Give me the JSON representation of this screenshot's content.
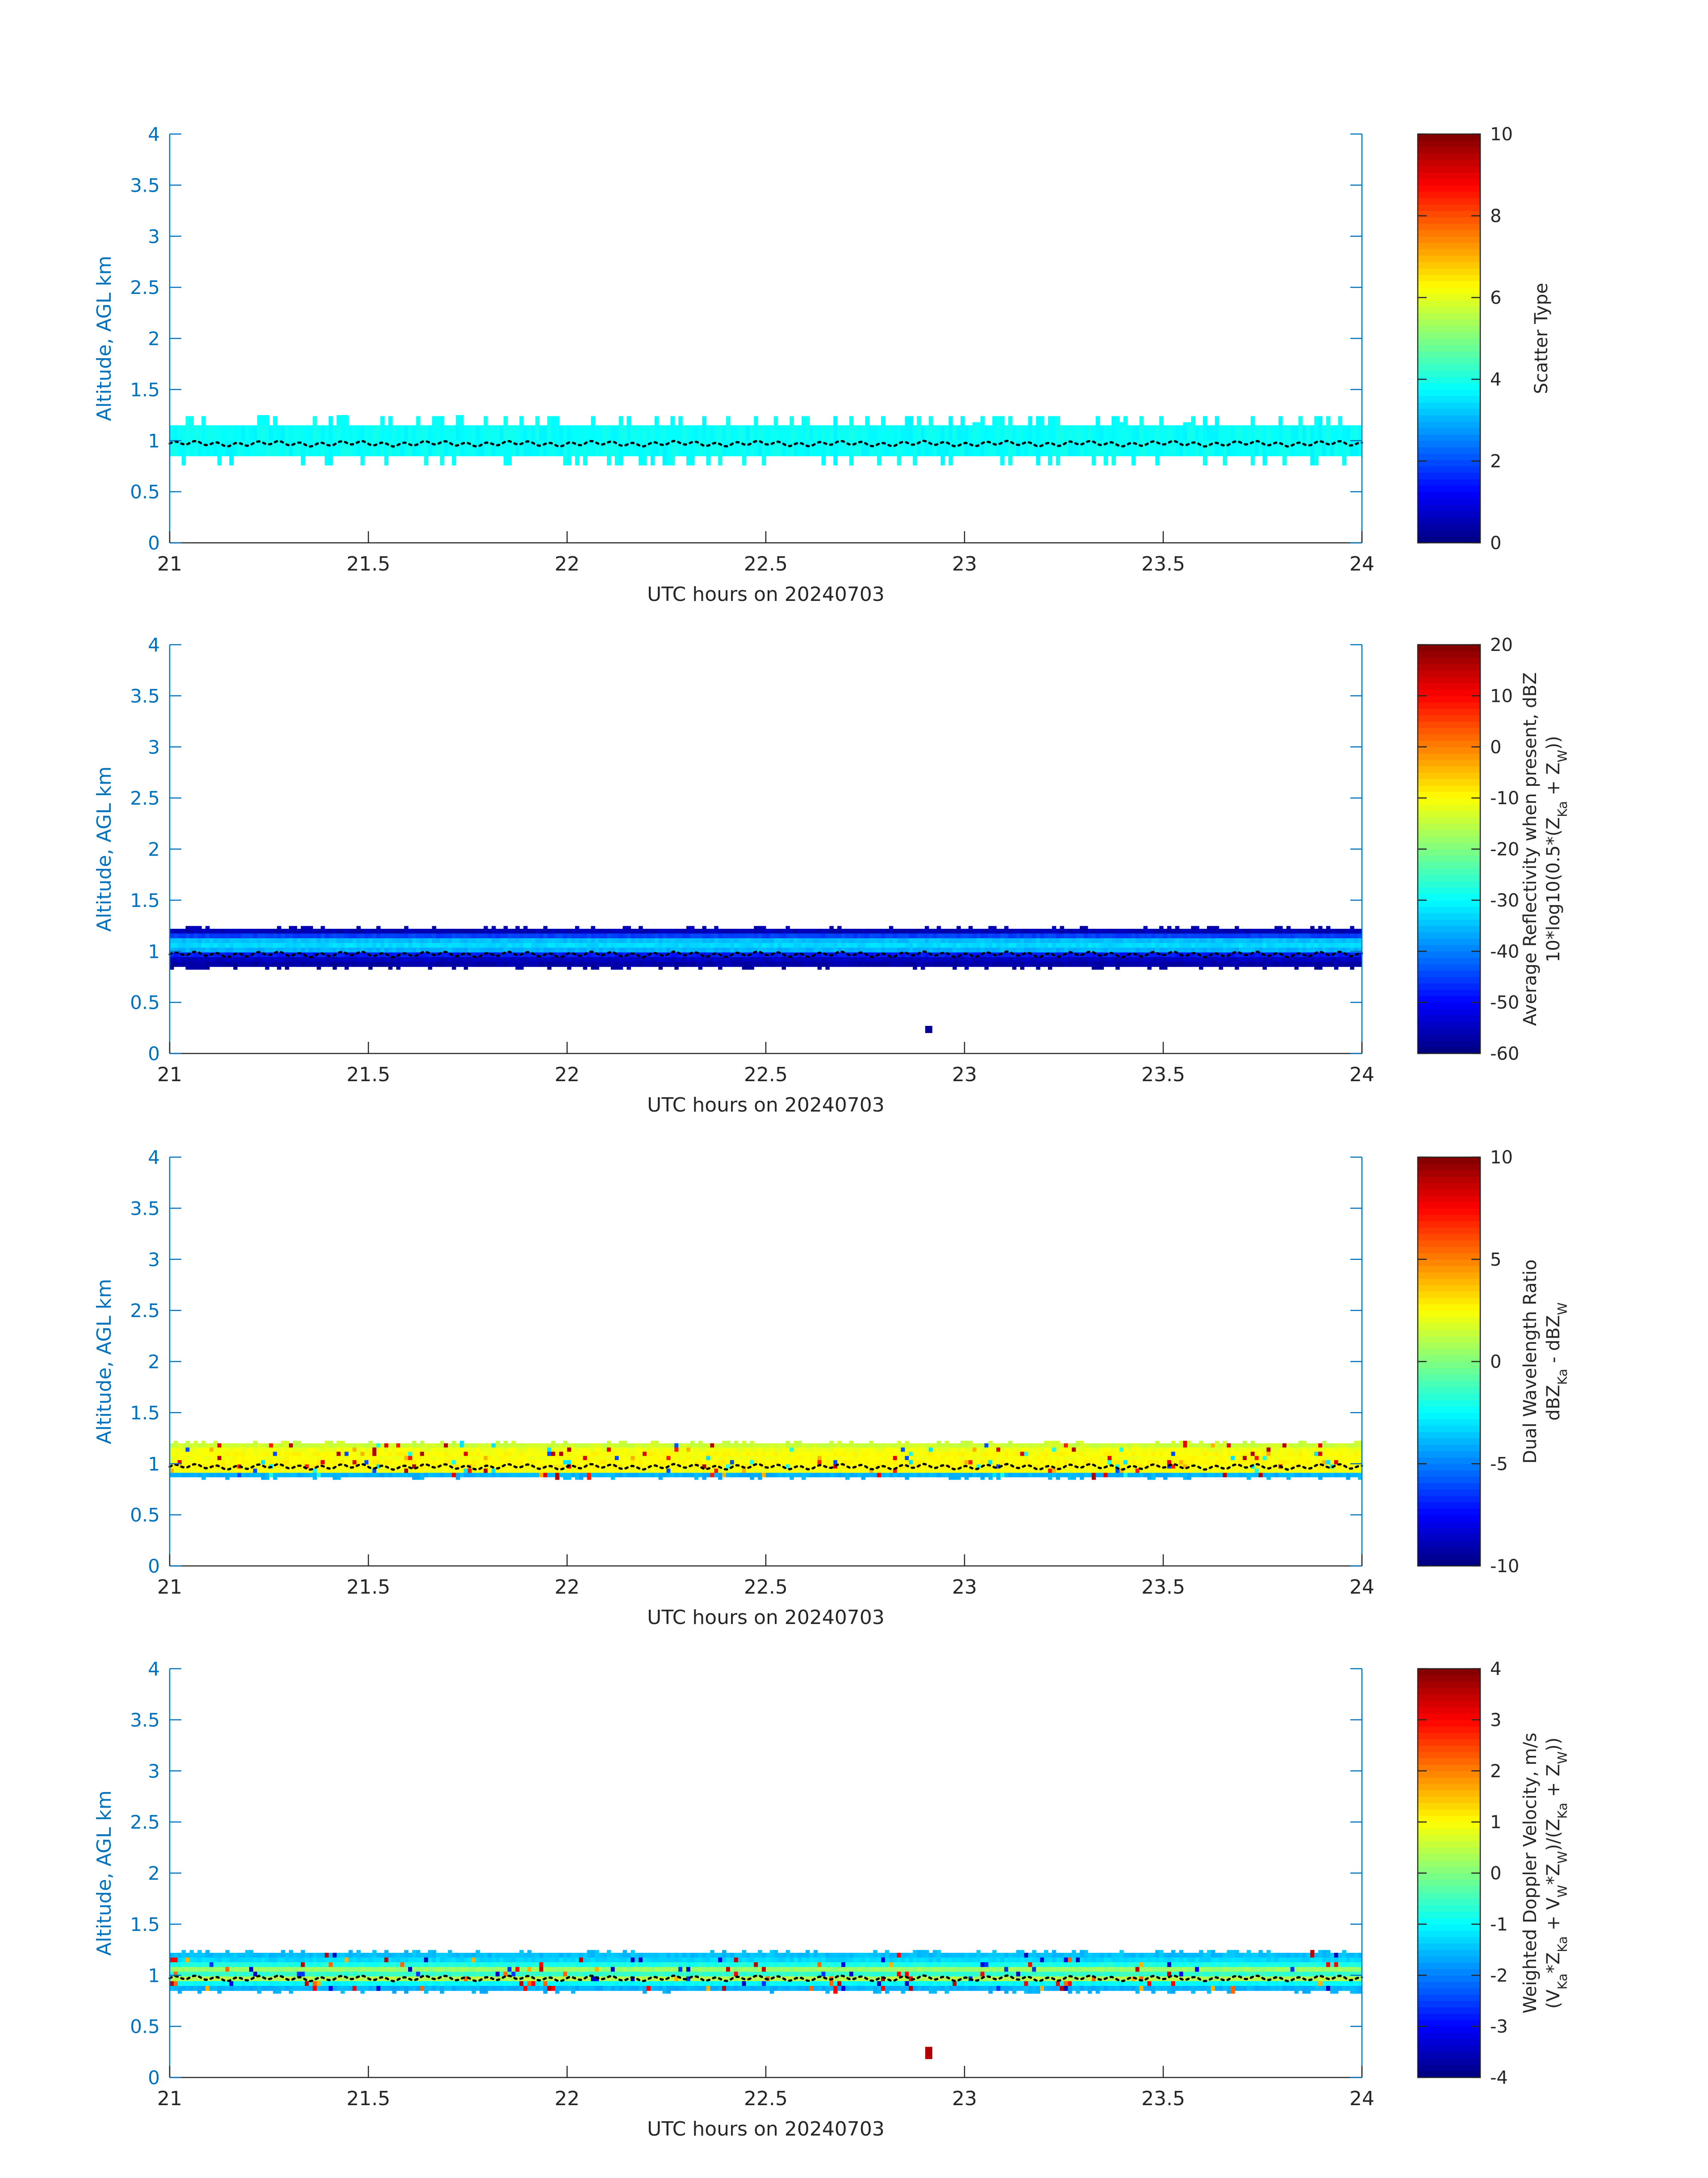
{
  "figure": {
    "background": "#ffffff",
    "axis_color": "#0072bd",
    "text_color": "#262626",
    "colormap": "jet"
  },
  "chart_data": [
    {
      "type": "heatmap",
      "title": "",
      "xlabel": "UTC hours on 20240703",
      "ylabel": "Altitude, AGL km",
      "xlim": [
        21,
        24
      ],
      "ylim": [
        0,
        4
      ],
      "xticks": [
        "21",
        "21.5",
        "22",
        "22.5",
        "23",
        "23.5",
        "24"
      ],
      "yticks": [
        "0",
        "0.5",
        "1",
        "1.5",
        "2",
        "2.5",
        "3",
        "3.5",
        "4"
      ],
      "grid": false,
      "colorbar": {
        "label_lines": [
          "Scatter Type"
        ],
        "range": [
          0,
          10
        ],
        "ticks": [
          "0",
          "2",
          "4",
          "6",
          "8",
          "10"
        ]
      },
      "layer": {
        "bottom_km": 0.85,
        "top_km": 1.15,
        "values": [
          3.8,
          3.8
        ],
        "bumps_top": [
          [
            21.22,
            21.25,
            1.25
          ],
          [
            21.42,
            21.45,
            1.25
          ],
          [
            21.72,
            21.74,
            1.25
          ],
          [
            23.02,
            23.04,
            1.18
          ],
          [
            23.38,
            23.4,
            1.18
          ],
          [
            23.55,
            23.57,
            1.18
          ]
        ]
      },
      "cloud_base_line": {
        "altitude_km": 0.97,
        "color": "#000000"
      }
    },
    {
      "type": "heatmap",
      "title": "",
      "xlabel": "UTC hours on 20240703",
      "ylabel": "Altitude, AGL km",
      "xlim": [
        21,
        24
      ],
      "ylim": [
        0,
        4
      ],
      "xticks": [
        "21",
        "21.5",
        "22",
        "22.5",
        "23",
        "23.5",
        "24"
      ],
      "yticks": [
        "0",
        "0.5",
        "1",
        "1.5",
        "2",
        "2.5",
        "3",
        "3.5",
        "4"
      ],
      "grid": false,
      "colorbar": {
        "label_lines": [
          "Average Reflectivity when present, dBZ",
          "10*log10(0.5*(Z_Ka + Z_W))"
        ],
        "range": [
          -60,
          20
        ],
        "ticks": [
          "-60",
          "-50",
          "-40",
          "-30",
          "-20",
          "-10",
          "0",
          "10",
          "20"
        ]
      },
      "layer": {
        "bottom_km": 0.85,
        "top_km": 1.22,
        "values": [
          -57,
          -55,
          -48,
          -36,
          -33,
          -35,
          -45,
          -56
        ],
        "isolated": [
          {
            "x": 22.91,
            "y_bottom_km": 0.2,
            "y_top_km": 0.27,
            "value": -58
          }
        ]
      },
      "cloud_base_line": {
        "altitude_km": 0.97,
        "color": "#000000"
      }
    },
    {
      "type": "heatmap",
      "title": "",
      "xlabel": "UTC hours on 20240703",
      "ylabel": "Altitude, AGL km",
      "xlim": [
        21,
        24
      ],
      "ylim": [
        0,
        4
      ],
      "xticks": [
        "21",
        "21.5",
        "22",
        "22.5",
        "23",
        "23.5",
        "24"
      ],
      "yticks": [
        "0",
        "0.5",
        "1",
        "1.5",
        "2",
        "2.5",
        "3",
        "3.5",
        "4"
      ],
      "grid": false,
      "colorbar": {
        "label_lines": [
          "Dual Wavelength Ratio",
          "dBZ_Ka - dBZ_W"
        ],
        "range": [
          -10,
          10
        ],
        "ticks": [
          "-10",
          "-5",
          "0",
          "5",
          "10"
        ]
      },
      "layer": {
        "bottom_km": 0.87,
        "top_km": 1.2,
        "values": [
          -4,
          2.3,
          2.6,
          2.6,
          2.4,
          2.5,
          2.2,
          1.5
        ],
        "speckle": [
          7,
          9,
          -3,
          -6,
          4,
          -2,
          8
        ]
      },
      "cloud_base_line": {
        "altitude_km": 0.97,
        "color": "#000000"
      }
    },
    {
      "type": "heatmap",
      "title": "",
      "xlabel": "UTC hours on 20240703",
      "ylabel": "Altitude, AGL km",
      "xlim": [
        21,
        24
      ],
      "ylim": [
        0,
        4
      ],
      "xticks": [
        "21",
        "21.5",
        "22",
        "22.5",
        "23",
        "23.5",
        "24"
      ],
      "yticks": [
        "0",
        "0.5",
        "1",
        "1.5",
        "2",
        "2.5",
        "3",
        "3.5",
        "4"
      ],
      "grid": false,
      "colorbar": {
        "label_lines": [
          "Weighted Doppler Velocity, m/s",
          "(V_Ka*Z_Ka + V_W*Z_W)/(Z_Ka + Z_W))"
        ],
        "range": [
          -4,
          4
        ],
        "ticks": [
          "-4",
          "-3",
          "-2",
          "-1",
          "0",
          "1",
          "2",
          "3",
          "4"
        ]
      },
      "layer": {
        "bottom_km": 0.85,
        "top_km": 1.22,
        "values": [
          -1.6,
          -1.0,
          0.4,
          -0.6,
          0.2,
          -0.8,
          -1.3,
          -1.5
        ],
        "speckle": [
          3.5,
          -3.5,
          2.2,
          -2.6,
          1.6,
          3.0,
          -3.2
        ],
        "isolated": [
          {
            "x": 22.91,
            "y_bottom_km": 0.18,
            "y_top_km": 0.3,
            "value": 3.6
          }
        ]
      },
      "cloud_base_line": {
        "altitude_km": 0.97,
        "color": "#000000"
      }
    }
  ]
}
